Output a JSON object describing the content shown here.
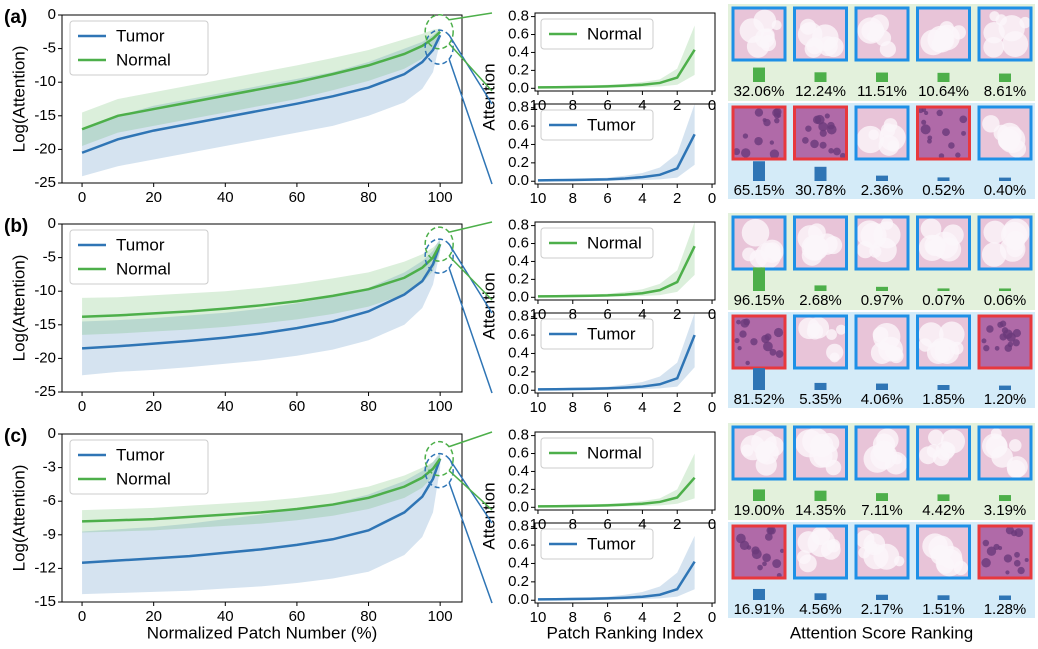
{
  "chart_data": [
    {
      "type": "line",
      "panel_label": "(a)",
      "ylabel": "Log(Attention)",
      "xlim": [
        -5.6,
        106.1
      ],
      "ylim": [
        -25,
        0
      ],
      "xticks": [
        0,
        20,
        40,
        60,
        80,
        100
      ],
      "yticks": [
        0,
        -5,
        -10,
        -15,
        -20,
        -25
      ],
      "legend": "upper left",
      "x": [
        0,
        10,
        20,
        30,
        40,
        50,
        60,
        70,
        80,
        90,
        95,
        98,
        100
      ],
      "series": [
        {
          "name": "Tumor",
          "color": "#2f75b5",
          "values": [
            -20.5,
            -18.5,
            -17.2,
            -16.2,
            -15.2,
            -14.2,
            -13.2,
            -12.1,
            -10.8,
            -8.8,
            -7,
            -5.2,
            -3
          ],
          "lower": [
            -24,
            -22.5,
            -21.5,
            -20.5,
            -19.5,
            -18.5,
            -17.5,
            -16.5,
            -15,
            -13,
            -11,
            -8.5,
            -4
          ],
          "upper": [
            -17,
            -15,
            -13.5,
            -12.5,
            -11.5,
            -10.5,
            -9.5,
            -8.5,
            -7,
            -5,
            -4,
            -3,
            -2
          ]
        },
        {
          "name": "Normal",
          "color": "#4daf4a",
          "values": [
            -17,
            -15,
            -14,
            -13,
            -12,
            -11,
            -10,
            -8.8,
            -7.5,
            -5.8,
            -4.6,
            -3.5,
            -2.5
          ],
          "lower": [
            -19.5,
            -17.5,
            -16.5,
            -15.5,
            -14.5,
            -13.5,
            -12.5,
            -11.2,
            -9.8,
            -8,
            -6.5,
            -5,
            -3
          ],
          "upper": [
            -14.5,
            -12.5,
            -11.5,
            -10.5,
            -9.5,
            -8.5,
            -7.5,
            -6.4,
            -5.2,
            -3.6,
            -2.8,
            -2.2,
            -2
          ]
        }
      ]
    },
    {
      "type": "line",
      "ylabel": "Attention",
      "xlim": [
        10.17,
        -0.17
      ],
      "ylim": [
        -0.03,
        0.84
      ],
      "xticks": [
        10,
        8,
        6,
        4,
        2,
        0
      ],
      "yticks": [
        {
          "value": 0,
          "label": "0.0"
        },
        0.2,
        0.4,
        0.6,
        0.8
      ],
      "legend": "upper left",
      "x": [
        10,
        9,
        8,
        7,
        6,
        5,
        4,
        3,
        2,
        1
      ],
      "series": [
        {
          "name": "Normal",
          "color": "#4daf4a",
          "values": [
            0.01,
            0.012,
            0.015,
            0.018,
            0.022,
            0.03,
            0.04,
            0.06,
            0.12,
            0.43
          ],
          "lower": [
            0,
            0,
            0,
            0.005,
            0.008,
            0.01,
            0.015,
            0.02,
            0.04,
            0.15
          ],
          "upper": [
            0.02,
            0.02,
            0.03,
            0.03,
            0.04,
            0.05,
            0.07,
            0.1,
            0.22,
            0.7
          ]
        }
      ]
    },
    {
      "type": "line",
      "xlim": [
        10.17,
        -0.17
      ],
      "ylim": [
        -0.03,
        0.84
      ],
      "xticks": [
        10,
        8,
        6,
        4,
        2,
        0
      ],
      "yticks": [
        {
          "value": 0,
          "label": "0.0"
        },
        0.2,
        0.4,
        0.6,
        0.8
      ],
      "legend": "upper left",
      "x": [
        10,
        9,
        8,
        7,
        6,
        5,
        4,
        3,
        2,
        1
      ],
      "series": [
        {
          "name": "Tumor",
          "color": "#2f75b5",
          "values": [
            0.01,
            0.012,
            0.014,
            0.017,
            0.02,
            0.03,
            0.045,
            0.07,
            0.14,
            0.51
          ],
          "lower": [
            0,
            0,
            0,
            0,
            0.005,
            0.008,
            0.012,
            0.02,
            0.04,
            0.18
          ],
          "upper": [
            0.02,
            0.02,
            0.03,
            0.03,
            0.04,
            0.06,
            0.09,
            0.15,
            0.3,
            0.84
          ]
        }
      ]
    },
    {
      "type": "bar",
      "color": "#4daf4a",
      "background": "#e3f1dc",
      "values": [
        32.06,
        12.24,
        11.51,
        10.64,
        8.61
      ],
      "value_labels": [
        "32.06%",
        "12.24%",
        "11.51%",
        "10.64%",
        "8.61%"
      ],
      "frame_colors": [
        "#1e90e6",
        "#1e90e6",
        "#1e90e6",
        "#1e90e6",
        "#1e90e6"
      ]
    },
    {
      "type": "bar",
      "color": "#2f75b5",
      "background": "#d4ebf8",
      "values": [
        65.15,
        30.78,
        2.36,
        0.52,
        0.4
      ],
      "value_labels": [
        "65.15%",
        "30.78%",
        "2.36%",
        "0.52%",
        "0.40%"
      ],
      "frame_colors": [
        "#e8383d",
        "#e8383d",
        "#1e90e6",
        "#e8383d",
        "#1e90e6"
      ]
    },
    {
      "type": "line",
      "panel_label": "(b)",
      "ylabel": "Log(Attention)",
      "xlim": [
        -5.6,
        106.1
      ],
      "ylim": [
        -25,
        0
      ],
      "xticks": [
        0,
        20,
        40,
        60,
        80,
        100
      ],
      "yticks": [
        0,
        -5,
        -10,
        -15,
        -20,
        -25
      ],
      "legend": "upper left",
      "x": [
        0,
        10,
        20,
        30,
        40,
        50,
        60,
        70,
        80,
        90,
        95,
        98,
        100
      ],
      "series": [
        {
          "name": "Tumor",
          "color": "#2f75b5",
          "values": [
            -18.5,
            -18.2,
            -17.8,
            -17.4,
            -16.9,
            -16.3,
            -15.5,
            -14.5,
            -13,
            -10.5,
            -8.5,
            -6,
            -3
          ],
          "lower": [
            -22.5,
            -22,
            -21.7,
            -21.3,
            -20.8,
            -20.3,
            -19.6,
            -18.7,
            -17.3,
            -15,
            -12.5,
            -9,
            -4
          ],
          "upper": [
            -14.5,
            -14.3,
            -14,
            -13.6,
            -13.2,
            -12.6,
            -11.8,
            -10.8,
            -9.5,
            -7.2,
            -5.5,
            -4,
            -2
          ]
        },
        {
          "name": "Normal",
          "color": "#4daf4a",
          "values": [
            -13.8,
            -13.6,
            -13.3,
            -13,
            -12.6,
            -12.1,
            -11.5,
            -10.7,
            -9.7,
            -8,
            -6.5,
            -5,
            -3
          ],
          "lower": [
            -16.5,
            -16.3,
            -16,
            -15.7,
            -15.3,
            -14.8,
            -14.2,
            -13.4,
            -12.3,
            -10.5,
            -8.8,
            -7,
            -4
          ],
          "upper": [
            -11,
            -10.9,
            -10.6,
            -10.3,
            -10,
            -9.5,
            -8.9,
            -8.1,
            -7.2,
            -5.6,
            -4.5,
            -3.5,
            -2.5
          ]
        }
      ]
    },
    {
      "type": "line",
      "ylabel": "Attention",
      "xlim": [
        10.17,
        -0.17
      ],
      "ylim": [
        -0.03,
        0.84
      ],
      "xticks": [
        10,
        8,
        6,
        4,
        2,
        0
      ],
      "yticks": [
        {
          "value": 0,
          "label": "0.0"
        },
        0.2,
        0.4,
        0.6,
        0.8
      ],
      "legend": "upper left",
      "x": [
        10,
        9,
        8,
        7,
        6,
        5,
        4,
        3,
        2,
        1
      ],
      "series": [
        {
          "name": "Normal",
          "color": "#4daf4a",
          "values": [
            0.01,
            0.012,
            0.014,
            0.017,
            0.021,
            0.03,
            0.045,
            0.08,
            0.17,
            0.57
          ],
          "lower": [
            0,
            0,
            0,
            0.004,
            0.007,
            0.01,
            0.015,
            0.025,
            0.06,
            0.25
          ],
          "upper": [
            0.02,
            0.02,
            0.03,
            0.03,
            0.04,
            0.06,
            0.09,
            0.15,
            0.3,
            0.84
          ]
        }
      ]
    },
    {
      "type": "line",
      "xlim": [
        10.17,
        -0.17
      ],
      "ylim": [
        -0.03,
        0.84
      ],
      "xticks": [
        10,
        8,
        6,
        4,
        2,
        0
      ],
      "yticks": [
        {
          "value": 0,
          "label": "0.0"
        },
        0.2,
        0.4,
        0.6,
        0.8
      ],
      "legend": "upper left",
      "x": [
        10,
        9,
        8,
        7,
        6,
        5,
        4,
        3,
        2,
        1
      ],
      "series": [
        {
          "name": "Tumor",
          "color": "#2f75b5",
          "values": [
            0.01,
            0.011,
            0.013,
            0.016,
            0.02,
            0.028,
            0.04,
            0.065,
            0.13,
            0.6
          ],
          "lower": [
            0,
            0,
            0,
            0,
            0.005,
            0.008,
            0.012,
            0.02,
            0.04,
            0.25
          ],
          "upper": [
            0.02,
            0.02,
            0.03,
            0.03,
            0.04,
            0.06,
            0.09,
            0.15,
            0.3,
            0.84
          ]
        }
      ]
    },
    {
      "type": "bar",
      "color": "#4daf4a",
      "background": "#e3f1dc",
      "values": [
        96.15,
        2.68,
        0.97,
        0.07,
        0.06
      ],
      "value_labels": [
        "96.15%",
        "2.68%",
        "0.97%",
        "0.07%",
        "0.06%"
      ],
      "frame_colors": [
        "#1e90e6",
        "#1e90e6",
        "#1e90e6",
        "#1e90e6",
        "#1e90e6"
      ]
    },
    {
      "type": "bar",
      "color": "#2f75b5",
      "background": "#d4ebf8",
      "values": [
        81.52,
        5.35,
        4.06,
        1.85,
        1.2
      ],
      "value_labels": [
        "81.52%",
        "5.35%",
        "4.06%",
        "1.85%",
        "1.20%"
      ],
      "frame_colors": [
        "#e8383d",
        "#1e90e6",
        "#1e90e6",
        "#1e90e6",
        "#e8383d"
      ]
    },
    {
      "type": "line",
      "panel_label": "(c)",
      "ylabel": "Log(Attention)",
      "xlabel": "Normalized Patch Number (%)",
      "xlim": [
        -5.6,
        106.1
      ],
      "ylim": [
        -15,
        0
      ],
      "xticks": [
        0,
        20,
        40,
        60,
        80,
        100
      ],
      "yticks": [
        0,
        -3,
        -6,
        -9,
        -12,
        -15
      ],
      "legend": "upper left",
      "x": [
        0,
        10,
        20,
        30,
        40,
        50,
        60,
        70,
        80,
        90,
        95,
        98,
        100
      ],
      "series": [
        {
          "name": "Tumor",
          "color": "#2f75b5",
          "values": [
            -11.5,
            -11.3,
            -11.1,
            -10.9,
            -10.6,
            -10.3,
            -9.9,
            -9.4,
            -8.6,
            -7,
            -5.6,
            -4,
            -2.2
          ],
          "lower": [
            -14.3,
            -14.2,
            -14.1,
            -14,
            -13.8,
            -13.6,
            -13.3,
            -12.9,
            -12.3,
            -10.8,
            -9.2,
            -7,
            -3
          ],
          "upper": [
            -8.7,
            -8.5,
            -8.3,
            -8,
            -7.6,
            -7.2,
            -6.7,
            -6.2,
            -5.4,
            -4.2,
            -3.3,
            -2.5,
            -1.6
          ]
        },
        {
          "name": "Normal",
          "color": "#4daf4a",
          "values": [
            -7.8,
            -7.7,
            -7.6,
            -7.4,
            -7.2,
            -7,
            -6.7,
            -6.3,
            -5.7,
            -4.7,
            -3.9,
            -3.1,
            -2.2
          ],
          "lower": [
            -8.8,
            -8.7,
            -8.6,
            -8.4,
            -8.2,
            -8,
            -7.7,
            -7.3,
            -6.7,
            -5.7,
            -4.8,
            -3.8,
            -2.6
          ],
          "upper": [
            -6.8,
            -6.7,
            -6.6,
            -6.4,
            -6.2,
            -6,
            -5.7,
            -5.3,
            -4.7,
            -3.7,
            -3,
            -2.5,
            -1.8
          ]
        }
      ]
    },
    {
      "type": "line",
      "ylabel": "Attention",
      "xlim": [
        10.17,
        -0.17
      ],
      "ylim": [
        -0.03,
        0.84
      ],
      "xticks": [
        10,
        8,
        6,
        4,
        2,
        0
      ],
      "yticks": [
        {
          "value": 0,
          "label": "0.0"
        },
        0.2,
        0.4,
        0.6,
        0.8
      ],
      "legend": "upper left",
      "x": [
        10,
        9,
        8,
        7,
        6,
        5,
        4,
        3,
        2,
        1
      ],
      "series": [
        {
          "name": "Normal",
          "color": "#4daf4a",
          "values": [
            0.01,
            0.012,
            0.015,
            0.018,
            0.022,
            0.03,
            0.04,
            0.06,
            0.11,
            0.33
          ],
          "lower": [
            0,
            0,
            0,
            0.005,
            0.008,
            0.01,
            0.015,
            0.02,
            0.04,
            0.1
          ],
          "upper": [
            0.02,
            0.02,
            0.03,
            0.03,
            0.04,
            0.05,
            0.07,
            0.1,
            0.2,
            0.6
          ]
        }
      ]
    },
    {
      "type": "line",
      "xlabel": "Patch Ranking Index",
      "xlim": [
        10.17,
        -0.17
      ],
      "ylim": [
        -0.03,
        0.84
      ],
      "xticks": [
        10,
        8,
        6,
        4,
        2,
        0
      ],
      "yticks": [
        {
          "value": 0,
          "label": "0.0"
        },
        0.2,
        0.4,
        0.6,
        0.8
      ],
      "legend": "upper left",
      "x": [
        10,
        9,
        8,
        7,
        6,
        5,
        4,
        3,
        2,
        1
      ],
      "series": [
        {
          "name": "Tumor",
          "color": "#2f75b5",
          "values": [
            0.01,
            0.011,
            0.013,
            0.016,
            0.02,
            0.027,
            0.038,
            0.06,
            0.12,
            0.42
          ],
          "lower": [
            0,
            0,
            0,
            0,
            0.005,
            0.008,
            0.012,
            0.02,
            0.04,
            0.12
          ],
          "upper": [
            0.02,
            0.02,
            0.03,
            0.03,
            0.04,
            0.06,
            0.09,
            0.15,
            0.3,
            0.7
          ]
        }
      ]
    },
    {
      "type": "bar",
      "color": "#4daf4a",
      "background": "#e3f1dc",
      "values": [
        19.0,
        14.35,
        7.11,
        4.42,
        3.19
      ],
      "value_labels": [
        "19.00%",
        "14.35%",
        "7.11%",
        "4.42%",
        "3.19%"
      ],
      "frame_colors": [
        "#1e90e6",
        "#1e90e6",
        "#1e90e6",
        "#1e90e6",
        "#1e90e6"
      ]
    },
    {
      "type": "bar",
      "color": "#2f75b5",
      "background": "#d4ebf8",
      "xlabel": "Attention Score Ranking",
      "values": [
        16.91,
        4.56,
        2.17,
        1.51,
        1.28
      ],
      "value_labels": [
        "16.91%",
        "4.56%",
        "2.17%",
        "1.51%",
        "1.28%"
      ],
      "frame_colors": [
        "#e8383d",
        "#1e90e6",
        "#1e90e6",
        "#1e90e6",
        "#e8383d"
      ]
    }
  ]
}
